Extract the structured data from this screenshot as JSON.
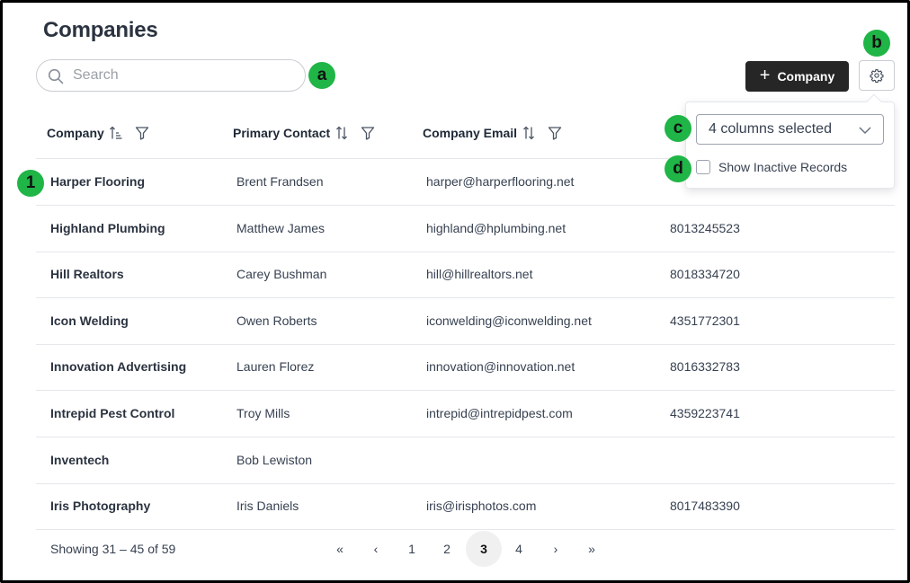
{
  "page": {
    "title": "Companies"
  },
  "search": {
    "placeholder": "Search",
    "value": ""
  },
  "toolbar": {
    "add_label": "Company",
    "add_icon": "plus-icon",
    "settings_icon": "gear-icon"
  },
  "badges": {
    "a": "a",
    "b": "b",
    "c": "c",
    "d": "d",
    "row1": "1"
  },
  "badge_color": "#1fb547",
  "settings_menu": {
    "columns_label": "4 columns selected",
    "inactive_label": "Show Inactive Records",
    "inactive_checked": false
  },
  "table": {
    "headers": [
      "Company",
      "Primary Contact",
      "Company Email"
    ],
    "rows": [
      {
        "company": "Harper Flooring",
        "contact": "Brent Frandsen",
        "email": "harper@harperflooring.net",
        "phone": ""
      },
      {
        "company": "Highland Plumbing",
        "contact": "Matthew James",
        "email": "highland@hplumbing.net",
        "phone": "8013245523"
      },
      {
        "company": "Hill Realtors",
        "contact": "Carey Bushman",
        "email": "hill@hillrealtors.net",
        "phone": "8018334720"
      },
      {
        "company": "Icon Welding",
        "contact": "Owen Roberts",
        "email": "iconwelding@iconwelding.net",
        "phone": "4351772301"
      },
      {
        "company": "Innovation Advertising",
        "contact": "Lauren Florez",
        "email": "innovation@innovation.net",
        "phone": "8016332783"
      },
      {
        "company": "Intrepid Pest Control",
        "contact": "Troy Mills",
        "email": "intrepid@intrepidpest.com",
        "phone": "4359223741"
      },
      {
        "company": "Inventech",
        "contact": "Bob Lewiston",
        "email": "",
        "phone": ""
      },
      {
        "company": "Iris Photography",
        "contact": "Iris Daniels",
        "email": "iris@irisphotos.com",
        "phone": "8017483390"
      }
    ]
  },
  "pagination": {
    "showing": "Showing 31 – 45 of 59",
    "first": "«",
    "prev": "‹",
    "pages": [
      "1",
      "2",
      "3",
      "4"
    ],
    "current": "3",
    "next": "›",
    "last": "»"
  }
}
